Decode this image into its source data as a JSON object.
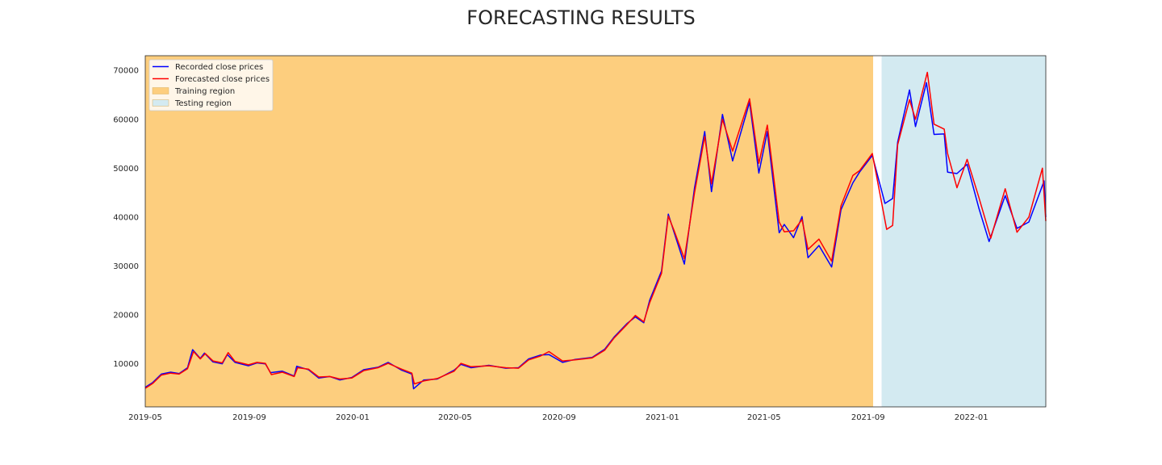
{
  "chart_data": {
    "type": "line",
    "title": "FORECASTING RESULTS",
    "xlabel": "",
    "ylabel": "",
    "xlim": [
      "2019-05-01",
      "2022-03-30"
    ],
    "ylim": [
      1200,
      73000
    ],
    "x_ticks": [
      "2019-05",
      "2019-09",
      "2020-01",
      "2020-05",
      "2020-09",
      "2021-01",
      "2021-05",
      "2021-09",
      "2022-01"
    ],
    "y_ticks": [
      10000,
      20000,
      30000,
      40000,
      50000,
      60000,
      70000
    ],
    "grid": false,
    "legend_position": "top-left",
    "regions": [
      {
        "name": "Training region",
        "start": "2019-05-01",
        "end": "2021-09-07",
        "color": "#fdce7e"
      },
      {
        "name": "Testing region",
        "start": "2021-09-17",
        "end": "2022-03-30",
        "color": "#d3eaf1"
      }
    ],
    "series": [
      {
        "name": "Recorded close prices",
        "color": "#0000ff",
        "points": [
          [
            "2019-05-01",
            5200
          ],
          [
            "2019-05-10",
            6200
          ],
          [
            "2019-05-20",
            7900
          ],
          [
            "2019-05-31",
            8300
          ],
          [
            "2019-06-10",
            8000
          ],
          [
            "2019-06-20",
            9200
          ],
          [
            "2019-06-26",
            12900
          ],
          [
            "2019-07-05",
            11100
          ],
          [
            "2019-07-10",
            12200
          ],
          [
            "2019-07-20",
            10400
          ],
          [
            "2019-07-31",
            10000
          ],
          [
            "2019-08-06",
            11900
          ],
          [
            "2019-08-15",
            10300
          ],
          [
            "2019-08-31",
            9600
          ],
          [
            "2019-09-10",
            10200
          ],
          [
            "2019-09-20",
            10000
          ],
          [
            "2019-09-26",
            8200
          ],
          [
            "2019-10-10",
            8500
          ],
          [
            "2019-10-24",
            7500
          ],
          [
            "2019-10-27",
            9500
          ],
          [
            "2019-11-10",
            8800
          ],
          [
            "2019-11-22",
            7100
          ],
          [
            "2019-12-05",
            7400
          ],
          [
            "2019-12-17",
            6700
          ],
          [
            "2019-12-31",
            7200
          ],
          [
            "2020-01-14",
            8800
          ],
          [
            "2020-01-31",
            9300
          ],
          [
            "2020-02-12",
            10300
          ],
          [
            "2020-02-28",
            8700
          ],
          [
            "2020-03-11",
            7900
          ],
          [
            "2020-03-13",
            4900
          ],
          [
            "2020-03-25",
            6700
          ],
          [
            "2020-04-10",
            6900
          ],
          [
            "2020-04-30",
            8700
          ],
          [
            "2020-05-08",
            9900
          ],
          [
            "2020-05-20",
            9200
          ],
          [
            "2020-06-10",
            9700
          ],
          [
            "2020-06-30",
            9100
          ],
          [
            "2020-07-15",
            9200
          ],
          [
            "2020-07-27",
            11000
          ],
          [
            "2020-08-10",
            11800
          ],
          [
            "2020-08-20",
            11900
          ],
          [
            "2020-09-05",
            10300
          ],
          [
            "2020-09-20",
            10900
          ],
          [
            "2020-10-10",
            11300
          ],
          [
            "2020-10-25",
            13000
          ],
          [
            "2020-11-05",
            15500
          ],
          [
            "2020-11-20",
            18200
          ],
          [
            "2020-11-30",
            19600
          ],
          [
            "2020-12-10",
            18400
          ],
          [
            "2020-12-17",
            23000
          ],
          [
            "2020-12-31",
            29000
          ],
          [
            "2021-01-08",
            40600
          ],
          [
            "2021-01-15",
            36800
          ],
          [
            "2021-01-27",
            30400
          ],
          [
            "2021-02-08",
            46000
          ],
          [
            "2021-02-20",
            57500
          ],
          [
            "2021-02-28",
            45200
          ],
          [
            "2021-03-13",
            61000
          ],
          [
            "2021-03-25",
            51500
          ],
          [
            "2021-04-14",
            63500
          ],
          [
            "2021-04-25",
            49000
          ],
          [
            "2021-05-05",
            57500
          ],
          [
            "2021-05-19",
            36800
          ],
          [
            "2021-05-25",
            38500
          ],
          [
            "2021-06-05",
            35800
          ],
          [
            "2021-06-15",
            40100
          ],
          [
            "2021-06-22",
            31700
          ],
          [
            "2021-07-05",
            34200
          ],
          [
            "2021-07-20",
            29800
          ],
          [
            "2021-07-31",
            41500
          ],
          [
            "2021-08-14",
            47000
          ],
          [
            "2021-08-22",
            49200
          ],
          [
            "2021-09-06",
            52600
          ],
          [
            "2021-09-21",
            42800
          ],
          [
            "2021-09-30",
            43800
          ],
          [
            "2021-10-06",
            55300
          ],
          [
            "2021-10-20",
            66000
          ],
          [
            "2021-10-27",
            58500
          ],
          [
            "2021-11-09",
            67500
          ],
          [
            "2021-11-18",
            56900
          ],
          [
            "2021-11-30",
            57000
          ],
          [
            "2021-12-04",
            49200
          ],
          [
            "2021-12-15",
            48900
          ],
          [
            "2021-12-27",
            50800
          ],
          [
            "2022-01-10",
            41800
          ],
          [
            "2022-01-22",
            35000
          ],
          [
            "2022-02-10",
            44400
          ],
          [
            "2022-02-24",
            37700
          ],
          [
            "2022-03-10",
            39000
          ],
          [
            "2022-03-28",
            47400
          ],
          [
            "2022-03-30",
            40000
          ]
        ]
      },
      {
        "name": "Forecasted close prices",
        "color": "#ff0000",
        "points": [
          [
            "2019-05-01",
            5000
          ],
          [
            "2019-05-10",
            6000
          ],
          [
            "2019-05-20",
            7700
          ],
          [
            "2019-05-31",
            8100
          ],
          [
            "2019-06-10",
            7900
          ],
          [
            "2019-06-20",
            9000
          ],
          [
            "2019-06-27",
            12500
          ],
          [
            "2019-07-05",
            11000
          ],
          [
            "2019-07-11",
            12100
          ],
          [
            "2019-07-20",
            10600
          ],
          [
            "2019-07-31",
            10200
          ],
          [
            "2019-08-07",
            12300
          ],
          [
            "2019-08-15",
            10500
          ],
          [
            "2019-08-31",
            9800
          ],
          [
            "2019-09-10",
            10300
          ],
          [
            "2019-09-20",
            10100
          ],
          [
            "2019-09-27",
            7800
          ],
          [
            "2019-10-10",
            8300
          ],
          [
            "2019-10-24",
            7400
          ],
          [
            "2019-10-28",
            9200
          ],
          [
            "2019-11-10",
            8900
          ],
          [
            "2019-11-22",
            7300
          ],
          [
            "2019-12-05",
            7400
          ],
          [
            "2019-12-17",
            6900
          ],
          [
            "2019-12-31",
            7100
          ],
          [
            "2020-01-14",
            8600
          ],
          [
            "2020-01-31",
            9200
          ],
          [
            "2020-02-12",
            10100
          ],
          [
            "2020-02-28",
            8900
          ],
          [
            "2020-03-11",
            8100
          ],
          [
            "2020-03-14",
            5900
          ],
          [
            "2020-03-25",
            6500
          ],
          [
            "2020-04-10",
            7000
          ],
          [
            "2020-04-30",
            8500
          ],
          [
            "2020-05-08",
            10100
          ],
          [
            "2020-05-20",
            9400
          ],
          [
            "2020-06-10",
            9600
          ],
          [
            "2020-06-30",
            9200
          ],
          [
            "2020-07-15",
            9100
          ],
          [
            "2020-07-27",
            10800
          ],
          [
            "2020-08-10",
            11600
          ],
          [
            "2020-08-20",
            12500
          ],
          [
            "2020-09-05",
            10600
          ],
          [
            "2020-09-20",
            10800
          ],
          [
            "2020-10-10",
            11200
          ],
          [
            "2020-10-25",
            12800
          ],
          [
            "2020-11-05",
            15300
          ],
          [
            "2020-11-20",
            18000
          ],
          [
            "2020-11-30",
            19900
          ],
          [
            "2020-12-10",
            18600
          ],
          [
            "2020-12-17",
            22500
          ],
          [
            "2020-12-31",
            28500
          ],
          [
            "2021-01-08",
            40200
          ],
          [
            "2021-01-15",
            37200
          ],
          [
            "2021-01-27",
            31500
          ],
          [
            "2021-02-08",
            45000
          ],
          [
            "2021-02-20",
            56500
          ],
          [
            "2021-02-28",
            46800
          ],
          [
            "2021-03-13",
            60000
          ],
          [
            "2021-03-25",
            53500
          ],
          [
            "2021-04-14",
            64200
          ],
          [
            "2021-04-25",
            51000
          ],
          [
            "2021-05-05",
            58800
          ],
          [
            "2021-05-19",
            39000
          ],
          [
            "2021-05-25",
            37000
          ],
          [
            "2021-06-05",
            37200
          ],
          [
            "2021-06-15",
            39500
          ],
          [
            "2021-06-22",
            33400
          ],
          [
            "2021-07-05",
            35500
          ],
          [
            "2021-07-20",
            31000
          ],
          [
            "2021-07-31",
            42300
          ],
          [
            "2021-08-14",
            48500
          ],
          [
            "2021-08-22",
            49500
          ],
          [
            "2021-09-06",
            53000
          ],
          [
            "2021-09-23",
            37500
          ],
          [
            "2021-09-30",
            38300
          ],
          [
            "2021-10-06",
            54800
          ],
          [
            "2021-10-20",
            64000
          ],
          [
            "2021-10-27",
            60000
          ],
          [
            "2021-11-10",
            69600
          ],
          [
            "2021-11-18",
            59000
          ],
          [
            "2021-11-30",
            58000
          ],
          [
            "2021-12-04",
            53000
          ],
          [
            "2021-12-15",
            46000
          ],
          [
            "2021-12-27",
            51800
          ],
          [
            "2022-01-10",
            44000
          ],
          [
            "2022-01-24",
            35700
          ],
          [
            "2022-02-10",
            45800
          ],
          [
            "2022-02-24",
            36900
          ],
          [
            "2022-03-10",
            40000
          ],
          [
            "2022-03-26",
            50000
          ],
          [
            "2022-03-30",
            39200
          ]
        ]
      }
    ]
  }
}
